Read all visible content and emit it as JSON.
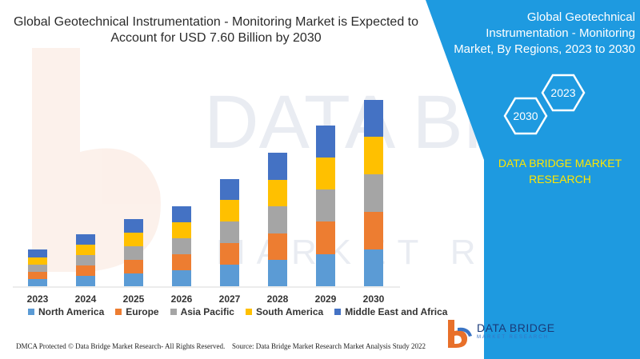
{
  "chart_data": {
    "type": "bar",
    "stacked": true,
    "title": "Global Geotechnical Instrumentation - Monitoring Market is Expected to Account for USD 7.60 Billion by 2030",
    "categories": [
      "2023",
      "2024",
      "2025",
      "2026",
      "2027",
      "2028",
      "2029",
      "2030"
    ],
    "series": [
      {
        "name": "North America",
        "color": "#5b9bd5",
        "values": [
          9,
          13,
          16,
          20,
          27,
          33,
          40,
          46
        ]
      },
      {
        "name": "Europe",
        "color": "#ed7d31",
        "values": [
          9,
          13,
          17,
          20,
          27,
          33,
          41,
          47
        ]
      },
      {
        "name": "Asia Pacific",
        "color": "#a5a5a5",
        "values": [
          9,
          13,
          17,
          20,
          27,
          34,
          40,
          47
        ]
      },
      {
        "name": "South America",
        "color": "#ffc000",
        "values": [
          9,
          13,
          17,
          20,
          27,
          33,
          40,
          47
        ]
      },
      {
        "name": "Middle East and Africa",
        "color": "#4472c4",
        "values": [
          10,
          13,
          17,
          20,
          26,
          34,
          40,
          46
        ]
      }
    ],
    "legend": "bottom",
    "grid": false
  },
  "side_panel": {
    "title": "Global Geotechnical Instrumentation - Monitoring Market, By Regions, 2023 to 2030",
    "hex_start": "2023",
    "hex_end": "2030",
    "brand": "DATA BRIDGE MARKET RESEARCH",
    "color": "#1e9ae0"
  },
  "footer": {
    "left": "DMCA Protected © Data Bridge Market Research- All Rights Reserved.",
    "right": "Source: Data Bridge Market Research Market Analysis Study 2022"
  },
  "logo": {
    "name": "DATA BRIDGE",
    "subtitle": "MARKET RESEARCH",
    "icon": "data-bridge-logo-icon"
  },
  "watermark": {
    "text": "DATA BRIDGE",
    "subtitle": "MARKET RESEARCH"
  }
}
